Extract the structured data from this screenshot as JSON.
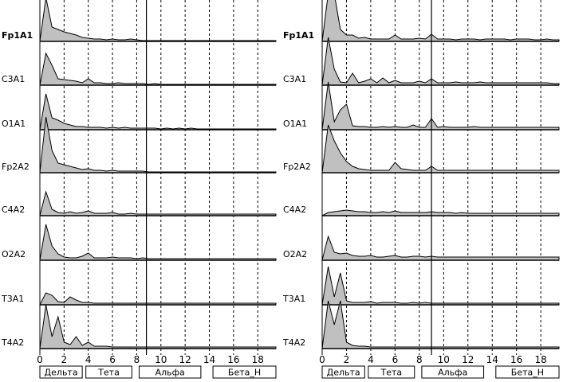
{
  "chart_data": [
    {
      "type": "area",
      "panel": "left",
      "xlim": [
        0,
        19.5
      ],
      "xticks": [
        0,
        2,
        4,
        6,
        8,
        10,
        12,
        14,
        16,
        18
      ],
      "grid": "vertical dashed",
      "marker_x": 8.8,
      "bands": [
        "Дельта",
        "Тета",
        "Альфа",
        "Бета_Н"
      ],
      "x": [
        0,
        0.5,
        1,
        1.5,
        2,
        2.5,
        3,
        3.5,
        4,
        4.5,
        5,
        5.5,
        6,
        6.5,
        7,
        7.5,
        8,
        8.5,
        9,
        9.5,
        10,
        10.5,
        11,
        11.5,
        12,
        12.5,
        13,
        13.5,
        14,
        14.5,
        15,
        15.5,
        16,
        16.5,
        17,
        17.5,
        18,
        18.5,
        19,
        19.5
      ],
      "series": [
        {
          "name": "Fp1A1",
          "bold": true,
          "values": [
            0,
            55,
            18,
            15,
            12,
            10,
            8,
            5,
            4,
            3,
            3,
            2,
            3,
            2,
            2,
            3,
            2,
            1,
            1,
            1,
            1,
            1,
            1,
            1,
            1,
            1,
            1,
            1,
            1,
            1,
            1,
            1,
            1,
            1,
            1,
            1,
            1,
            1,
            1,
            1
          ]
        },
        {
          "name": "C3A1",
          "bold": false,
          "values": [
            0,
            40,
            25,
            8,
            7,
            6,
            5,
            3,
            8,
            3,
            3,
            2,
            2,
            3,
            2,
            2,
            2,
            2,
            1,
            2,
            1,
            1,
            1,
            1,
            1,
            1,
            1,
            1,
            1,
            1,
            1,
            1,
            1,
            1,
            1,
            1,
            1,
            1,
            1,
            1
          ]
        },
        {
          "name": "O1A1",
          "bold": false,
          "values": [
            0,
            45,
            15,
            12,
            8,
            6,
            4,
            4,
            3,
            3,
            3,
            2,
            3,
            2,
            3,
            2,
            2,
            2,
            2,
            2,
            1,
            2,
            1,
            2,
            1,
            2,
            1,
            1,
            1,
            1,
            1,
            1,
            1,
            1,
            1,
            1,
            1,
            1,
            1,
            1
          ]
        },
        {
          "name": "Fp2A2",
          "bold": false,
          "values": [
            0,
            70,
            28,
            12,
            10,
            8,
            6,
            4,
            5,
            3,
            3,
            2,
            3,
            2,
            2,
            2,
            2,
            2,
            1,
            1,
            1,
            1,
            1,
            1,
            1,
            1,
            1,
            1,
            1,
            1,
            1,
            1,
            1,
            1,
            1,
            1,
            1,
            1,
            1,
            1
          ]
        },
        {
          "name": "C4A2",
          "bold": false,
          "values": [
            0,
            30,
            8,
            4,
            3,
            5,
            3,
            4,
            6,
            3,
            3,
            3,
            4,
            2,
            2,
            3,
            2,
            2,
            2,
            2,
            2,
            2,
            2,
            2,
            2,
            2,
            2,
            2,
            2,
            2,
            2,
            2,
            2,
            2,
            2,
            2,
            2,
            2,
            2,
            2
          ]
        },
        {
          "name": "O2A2",
          "bold": false,
          "values": [
            0,
            45,
            18,
            8,
            4,
            3,
            3,
            5,
            9,
            3,
            3,
            3,
            4,
            3,
            3,
            3,
            2,
            3,
            2,
            2,
            2,
            2,
            2,
            2,
            2,
            2,
            2,
            2,
            2,
            2,
            2,
            2,
            2,
            2,
            2,
            2,
            2,
            2,
            2,
            2
          ]
        },
        {
          "name": "T3A1",
          "bold": false,
          "values": [
            0,
            15,
            12,
            4,
            3,
            10,
            6,
            3,
            3,
            2,
            2,
            2,
            2,
            2,
            2,
            2,
            2,
            2,
            2,
            2,
            2,
            2,
            2,
            2,
            2,
            2,
            2,
            2,
            2,
            2,
            2,
            2,
            2,
            2,
            2,
            2,
            2,
            2,
            2,
            2
          ]
        },
        {
          "name": "T4A2",
          "bold": false,
          "values": [
            0,
            55,
            15,
            40,
            8,
            5,
            15,
            4,
            8,
            3,
            3,
            3,
            2,
            2,
            2,
            2,
            2,
            2,
            2,
            2,
            2,
            2,
            2,
            2,
            2,
            2,
            2,
            2,
            2,
            2,
            2,
            2,
            2,
            2,
            2,
            2,
            2,
            2,
            2,
            2
          ]
        }
      ]
    },
    {
      "type": "area",
      "panel": "right",
      "xlim": [
        0,
        19.5
      ],
      "xticks": [
        0,
        2,
        4,
        6,
        8,
        10,
        12,
        14,
        16,
        18
      ],
      "grid": "vertical dashed",
      "marker_x": 9,
      "bands": [
        "Дельта",
        "Тета",
        "Альфа",
        "Бета_Н"
      ],
      "x": [
        0,
        0.5,
        1,
        1.5,
        2,
        2.5,
        3,
        3.5,
        4,
        4.5,
        5,
        5.5,
        6,
        6.5,
        7,
        7.5,
        8,
        8.5,
        9,
        9.5,
        10,
        10.5,
        11,
        11.5,
        12,
        12.5,
        13,
        13.5,
        14,
        14.5,
        15,
        15.5,
        16,
        16.5,
        17,
        17.5,
        18,
        18.5,
        19,
        19.5
      ],
      "series": [
        {
          "name": "Fp1A1",
          "bold": true,
          "values": [
            0,
            60,
            60,
            15,
            8,
            8,
            4,
            5,
            3,
            3,
            3,
            3,
            8,
            3,
            3,
            3,
            4,
            3,
            9,
            3,
            3,
            3,
            2,
            3,
            3,
            3,
            2,
            3,
            3,
            3,
            3,
            2,
            3,
            3,
            3,
            2,
            2,
            3,
            2,
            2
          ]
        },
        {
          "name": "C3A1",
          "bold": false,
          "values": [
            0,
            60,
            20,
            4,
            3,
            15,
            3,
            5,
            8,
            3,
            9,
            3,
            6,
            3,
            3,
            3,
            5,
            3,
            8,
            3,
            3,
            3,
            4,
            3,
            3,
            3,
            4,
            3,
            3,
            3,
            3,
            3,
            3,
            3,
            3,
            3,
            3,
            3,
            2,
            2
          ]
        },
        {
          "name": "O1A1",
          "bold": false,
          "values": [
            0,
            60,
            10,
            25,
            32,
            5,
            4,
            4,
            3,
            3,
            4,
            3,
            4,
            3,
            3,
            6,
            3,
            3,
            14,
            3,
            4,
            3,
            3,
            3,
            3,
            4,
            3,
            3,
            3,
            3,
            3,
            3,
            3,
            3,
            3,
            3,
            3,
            3,
            3,
            3
          ]
        },
        {
          "name": "Fp2A2",
          "bold": false,
          "values": [
            0,
            60,
            40,
            25,
            14,
            8,
            5,
            4,
            3,
            3,
            3,
            3,
            13,
            5,
            4,
            3,
            3,
            3,
            8,
            3,
            3,
            3,
            3,
            3,
            3,
            3,
            3,
            3,
            3,
            3,
            3,
            3,
            3,
            3,
            3,
            3,
            3,
            3,
            3,
            3
          ]
        },
        {
          "name": "C4A2",
          "bold": false,
          "values": [
            0,
            4,
            5,
            6,
            7,
            6,
            5,
            5,
            4,
            4,
            5,
            4,
            6,
            4,
            4,
            4,
            4,
            4,
            5,
            4,
            4,
            4,
            3,
            4,
            3,
            3,
            3,
            3,
            3,
            3,
            3,
            3,
            3,
            3,
            3,
            3,
            3,
            3,
            3,
            3
          ]
        },
        {
          "name": "O2A2",
          "bold": false,
          "values": [
            0,
            30,
            10,
            8,
            9,
            6,
            5,
            5,
            6,
            4,
            4,
            5,
            6,
            4,
            4,
            5,
            5,
            4,
            5,
            4,
            4,
            4,
            4,
            4,
            4,
            4,
            4,
            4,
            4,
            4,
            4,
            4,
            4,
            4,
            4,
            4,
            4,
            4,
            4,
            4
          ]
        },
        {
          "name": "T3A1",
          "bold": false,
          "values": [
            0,
            48,
            10,
            40,
            5,
            3,
            3,
            3,
            4,
            2,
            3,
            3,
            3,
            2,
            2,
            3,
            2,
            3,
            2,
            2,
            2,
            2,
            2,
            2,
            2,
            2,
            2,
            2,
            2,
            2,
            2,
            2,
            2,
            2,
            2,
            2,
            2,
            2,
            2,
            2
          ]
        },
        {
          "name": "T4A2",
          "bold": false,
          "values": [
            0,
            60,
            30,
            60,
            8,
            4,
            3,
            3,
            2,
            2,
            2,
            2,
            2,
            2,
            2,
            2,
            2,
            2,
            2,
            2,
            2,
            2,
            2,
            2,
            2,
            2,
            2,
            2,
            2,
            2,
            2,
            2,
            2,
            2,
            2,
            2,
            2,
            2,
            2,
            2
          ]
        }
      ]
    }
  ]
}
